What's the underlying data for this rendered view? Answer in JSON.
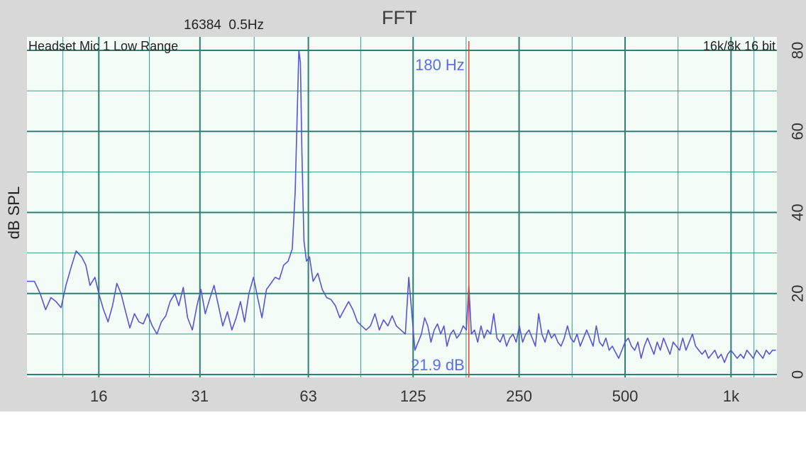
{
  "header": {
    "title": "FFT",
    "fft_size": "16384",
    "resolution": "0.5Hz",
    "input_label": "Headset Mic 1 Low Range",
    "format_label": "16k/8k 16 bit"
  },
  "cursor": {
    "frequency_label": "180 Hz",
    "level_label": "21.9 dB",
    "frequency": 180,
    "level": 21.9
  },
  "colors": {
    "plot_background": "#f3fcf6",
    "grid": "#2f7f72",
    "trace": "#5555d6",
    "cursor": "#d04a3a",
    "readout": "#5b6cf0"
  },
  "chart_data": {
    "type": "line",
    "title": "FFT",
    "xlabel": "",
    "ylabel": "dB SPL",
    "x_scale": "log",
    "xlim": [
      10,
      1350
    ],
    "ylim": [
      0,
      80
    ],
    "x_ticks": [
      {
        "value": 16,
        "label": "16"
      },
      {
        "value": 31,
        "label": "31"
      },
      {
        "value": 63,
        "label": "63"
      },
      {
        "value": 125,
        "label": "125"
      },
      {
        "value": 250,
        "label": "250"
      },
      {
        "value": 500,
        "label": "500"
      },
      {
        "value": 1000,
        "label": "1k"
      }
    ],
    "y_ticks": [
      {
        "value": 0,
        "label": "0"
      },
      {
        "value": 20,
        "label": "20"
      },
      {
        "value": 40,
        "label": "40"
      },
      {
        "value": 60,
        "label": "60"
      },
      {
        "value": 80,
        "label": "80"
      }
    ],
    "grid": true,
    "series": [
      {
        "points": [
          [
            10,
            23
          ],
          [
            10.5,
            23
          ],
          [
            10.9,
            20
          ],
          [
            11.3,
            16
          ],
          [
            11.7,
            19
          ],
          [
            12.1,
            18
          ],
          [
            12.5,
            16.5
          ],
          [
            12.9,
            22
          ],
          [
            13.4,
            27
          ],
          [
            13.8,
            30.5
          ],
          [
            14.3,
            29
          ],
          [
            14.7,
            27
          ],
          [
            15.1,
            22
          ],
          [
            15.6,
            24
          ],
          [
            16,
            20
          ],
          [
            16.5,
            16
          ],
          [
            17,
            13
          ],
          [
            17.5,
            17
          ],
          [
            18,
            22.5
          ],
          [
            18.5,
            20
          ],
          [
            19,
            16
          ],
          [
            19.6,
            11.5
          ],
          [
            20.2,
            15
          ],
          [
            20.8,
            13
          ],
          [
            21.4,
            12.5
          ],
          [
            22,
            15
          ],
          [
            22.7,
            12
          ],
          [
            23.4,
            10
          ],
          [
            24.1,
            13
          ],
          [
            24.8,
            14.5
          ],
          [
            25.5,
            18
          ],
          [
            26.3,
            20
          ],
          [
            27,
            17
          ],
          [
            27.8,
            21.5
          ],
          [
            28.6,
            14
          ],
          [
            29.5,
            11
          ],
          [
            30.4,
            17
          ],
          [
            31.2,
            21
          ],
          [
            32.1,
            15
          ],
          [
            33,
            18.5
          ],
          [
            34,
            22
          ],
          [
            35,
            17
          ],
          [
            36,
            12
          ],
          [
            37.1,
            15.5
          ],
          [
            38.2,
            11
          ],
          [
            39.3,
            14
          ],
          [
            40.4,
            18
          ],
          [
            41.5,
            13
          ],
          [
            42.7,
            20
          ],
          [
            44,
            24
          ],
          [
            45.2,
            19
          ],
          [
            46.5,
            14
          ],
          [
            47.9,
            21
          ],
          [
            49.3,
            22.5
          ],
          [
            50.7,
            24
          ],
          [
            52.1,
            23.5
          ],
          [
            53.6,
            27
          ],
          [
            55.2,
            28
          ],
          [
            56.7,
            31
          ],
          [
            57.8,
            45
          ],
          [
            58.6,
            65
          ],
          [
            59.2,
            80
          ],
          [
            59.8,
            77
          ],
          [
            60.4,
            55
          ],
          [
            61.2,
            33
          ],
          [
            62.2,
            28
          ],
          [
            63.5,
            29
          ],
          [
            65,
            23
          ],
          [
            67,
            25
          ],
          [
            69,
            21
          ],
          [
            71,
            19
          ],
          [
            73.1,
            18.5
          ],
          [
            75.2,
            17
          ],
          [
            77.4,
            14
          ],
          [
            79.6,
            16
          ],
          [
            82,
            18
          ],
          [
            84.3,
            16
          ],
          [
            86.8,
            13
          ],
          [
            89.3,
            12
          ],
          [
            91.9,
            11
          ],
          [
            94.6,
            12
          ],
          [
            97.4,
            15
          ],
          [
            100.2,
            11
          ],
          [
            103,
            13.5
          ],
          [
            106,
            12
          ],
          [
            109,
            14.5
          ],
          [
            112,
            12
          ],
          [
            115.4,
            11
          ],
          [
            118.8,
            10
          ],
          [
            121.5,
            24
          ],
          [
            124,
            15
          ],
          [
            126.5,
            6
          ],
          [
            129.2,
            8
          ],
          [
            132,
            10
          ],
          [
            134.8,
            14
          ],
          [
            137.6,
            12
          ],
          [
            140.5,
            8
          ],
          [
            143.5,
            11
          ],
          [
            146.6,
            12.5
          ],
          [
            149.7,
            10
          ],
          [
            152.9,
            12
          ],
          [
            156,
            7
          ],
          [
            159.5,
            10
          ],
          [
            162.8,
            11
          ],
          [
            166.3,
            9
          ],
          [
            169.8,
            10
          ],
          [
            173.4,
            12
          ],
          [
            177.1,
            11
          ],
          [
            180,
            21.9
          ],
          [
            183,
            10
          ],
          [
            186.8,
            11
          ],
          [
            190.7,
            8
          ],
          [
            194.8,
            12
          ],
          [
            198.9,
            9
          ],
          [
            203,
            11
          ],
          [
            207.5,
            10
          ],
          [
            211.8,
            15
          ],
          [
            216.3,
            9
          ],
          [
            220.9,
            8
          ],
          [
            225.6,
            10
          ],
          [
            230.4,
            7
          ],
          [
            235.2,
            9
          ],
          [
            240.2,
            10
          ],
          [
            245.3,
            8
          ],
          [
            250.5,
            12
          ],
          [
            255.8,
            8
          ],
          [
            261.2,
            10
          ],
          [
            266.8,
            11
          ],
          [
            272.4,
            9
          ],
          [
            278.2,
            7
          ],
          [
            284.1,
            15
          ],
          [
            290.1,
            10
          ],
          [
            296.2,
            8
          ],
          [
            302.5,
            11
          ],
          [
            308.9,
            9
          ],
          [
            315.4,
            10
          ],
          [
            322.1,
            8
          ],
          [
            328.9,
            7
          ],
          [
            335.9,
            9
          ],
          [
            343,
            12
          ],
          [
            350.3,
            9
          ],
          [
            357.7,
            8
          ],
          [
            365.3,
            10
          ],
          [
            373,
            7
          ],
          [
            380.9,
            9
          ],
          [
            389,
            11
          ],
          [
            397.2,
            9
          ],
          [
            405.6,
            7
          ],
          [
            414.2,
            12
          ],
          [
            423,
            8
          ],
          [
            432,
            7
          ],
          [
            441,
            9
          ],
          [
            450.4,
            6
          ],
          [
            460,
            7
          ],
          [
            469.6,
            5.5
          ],
          [
            479.6,
            4
          ],
          [
            489.7,
            6
          ],
          [
            500.1,
            8
          ],
          [
            510.7,
            9
          ],
          [
            521.5,
            7
          ],
          [
            532.6,
            6
          ],
          [
            543.8,
            8
          ],
          [
            555.4,
            4
          ],
          [
            567.1,
            7
          ],
          [
            579.1,
            9
          ],
          [
            591.4,
            7
          ],
          [
            603.9,
            5
          ],
          [
            616.7,
            8
          ],
          [
            629.8,
            6
          ],
          [
            643.1,
            9
          ],
          [
            656.7,
            7
          ],
          [
            670.7,
            5
          ],
          [
            684.9,
            8
          ],
          [
            699.4,
            7
          ],
          [
            714.2,
            6
          ],
          [
            729.4,
            9
          ],
          [
            744.8,
            6
          ],
          [
            760.6,
            8
          ],
          [
            776.7,
            10
          ],
          [
            793.2,
            7
          ],
          [
            810,
            6
          ],
          [
            827.2,
            5
          ],
          [
            844.7,
            6
          ],
          [
            862.6,
            4
          ],
          [
            880.9,
            5
          ],
          [
            899.5,
            6
          ],
          [
            918.6,
            4
          ],
          [
            938,
            5
          ],
          [
            957.9,
            3
          ],
          [
            978.2,
            5
          ],
          [
            998.9,
            6
          ],
          [
            1020,
            5
          ],
          [
            1041.7,
            4
          ],
          [
            1063.8,
            5
          ],
          [
            1086.3,
            4
          ],
          [
            1109.3,
            6
          ],
          [
            1132.8,
            5
          ],
          [
            1156.9,
            4
          ],
          [
            1181.4,
            6
          ],
          [
            1206.4,
            5
          ],
          [
            1232,
            4
          ],
          [
            1258.1,
            6
          ],
          [
            1284.8,
            5
          ],
          [
            1312,
            6
          ],
          [
            1339.8,
            6
          ]
        ]
      }
    ]
  }
}
